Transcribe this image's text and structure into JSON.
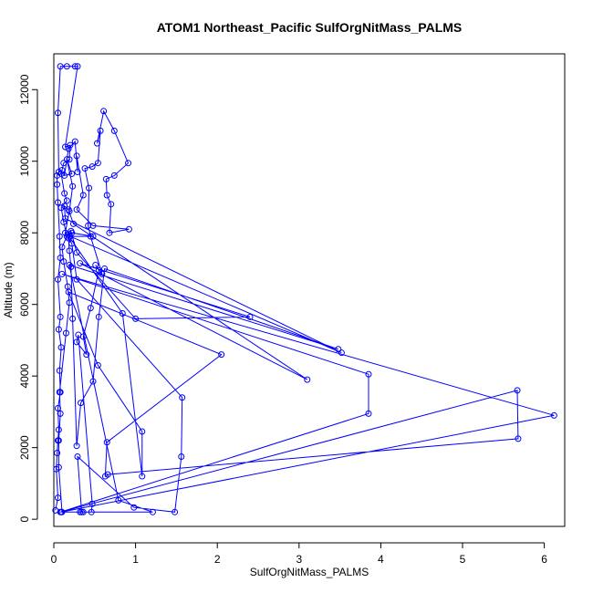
{
  "chart_data": {
    "type": "line",
    "title": "ATOM1 Northeast_Pacific SulfOrgNitMass_PALMS",
    "xlabel": "SulfOrgNitMass_PALMS",
    "ylabel": "Altitude (m)",
    "xlim": [
      0,
      6.25
    ],
    "ylim": [
      -200,
      13000
    ],
    "xticks": [
      0,
      1,
      2,
      3,
      4,
      5,
      6
    ],
    "yticks": [
      0,
      2000,
      4000,
      6000,
      8000,
      10000,
      12000
    ],
    "grid": false,
    "line_color": "#0000ff",
    "marker": "open-circle",
    "series": [
      {
        "points": [
          [
            0.02,
            250
          ],
          [
            0.05,
            600
          ],
          [
            0.03,
            1400
          ],
          [
            0.04,
            1850
          ],
          [
            0.05,
            2200
          ],
          [
            0.06,
            2500
          ],
          [
            0.05,
            3100
          ],
          [
            0.08,
            3550
          ],
          [
            0.07,
            4150
          ],
          [
            0.09,
            4800
          ],
          [
            0.06,
            5300
          ],
          [
            0.08,
            5650
          ],
          [
            0.05,
            6700
          ],
          [
            0.08,
            7300
          ],
          [
            0.07,
            7900
          ],
          [
            0.05,
            8850
          ],
          [
            0.04,
            9350
          ],
          [
            0.04,
            9600
          ],
          [
            0.06,
            9700
          ],
          [
            0.05,
            11350
          ],
          [
            0.08,
            12650
          ],
          [
            0.16,
            12650
          ],
          [
            0.26,
            12650
          ],
          [
            0.29,
            12650
          ],
          [
            0.14,
            10400
          ],
          [
            0.2,
            10450
          ],
          [
            0.19,
            10050
          ],
          [
            0.12,
            9950
          ],
          [
            0.1,
            9750
          ],
          [
            0.09,
            9650
          ],
          [
            0.13,
            9100
          ],
          [
            0.16,
            8900
          ],
          [
            0.09,
            8700
          ],
          [
            0.12,
            8300
          ],
          [
            0.16,
            7900
          ],
          [
            0.1,
            7600
          ],
          [
            0.12,
            7200
          ],
          [
            0.17,
            6500
          ],
          [
            0.19,
            6050
          ],
          [
            0.15,
            5200
          ],
          [
            0.07,
            3550
          ],
          [
            0.08,
            2950
          ],
          [
            0.06,
            2200
          ],
          [
            0.06,
            1450
          ],
          [
            0.1,
            200
          ],
          [
            0.32,
            200
          ],
          [
            0.36,
            200
          ],
          [
            0.46,
            200
          ],
          [
            0.47,
            430
          ],
          [
            0.3,
            5150
          ],
          [
            0.28,
            4950
          ],
          [
            0.4,
            4600
          ],
          [
            0.36,
            5100
          ],
          [
            0.45,
            5900
          ],
          [
            0.55,
            6950
          ],
          [
            0.51,
            7100
          ],
          [
            0.59,
            6850
          ],
          [
            0.45,
            7900
          ],
          [
            0.42,
            8200
          ],
          [
            0.43,
            9250
          ],
          [
            0.38,
            9800
          ],
          [
            0.47,
            9850
          ],
          [
            0.54,
            9950
          ],
          [
            0.57,
            10850
          ],
          [
            0.53,
            10500
          ],
          [
            0.61,
            11400
          ],
          [
            0.74,
            10850
          ],
          [
            0.91,
            9950
          ],
          [
            0.74,
            9600
          ],
          [
            0.64,
            9500
          ],
          [
            0.65,
            9050
          ],
          [
            0.7,
            8800
          ],
          [
            0.68,
            8000
          ],
          [
            0.92,
            8100
          ],
          [
            0.48,
            8200
          ],
          [
            0.28,
            8650
          ],
          [
            0.36,
            9050
          ],
          [
            0.28,
            10150
          ],
          [
            0.29,
            9700
          ],
          [
            0.26,
            10550
          ],
          [
            0.18,
            10350
          ],
          [
            0.13,
            9600
          ],
          [
            0.22,
            9650
          ],
          [
            0.16,
            10050
          ],
          [
            0.23,
            9300
          ],
          [
            0.19,
            8600
          ],
          [
            0.14,
            8000
          ],
          [
            0.22,
            7700
          ],
          [
            0.28,
            6700
          ],
          [
            1.57,
            3400
          ],
          [
            1.56,
            1750
          ],
          [
            1.48,
            200
          ],
          [
            0.98,
            330
          ],
          [
            0.29,
            1750
          ],
          [
            0.34,
            200
          ],
          [
            1.21,
            200
          ],
          [
            0.79,
            530
          ],
          [
            0.19,
            7100
          ],
          [
            3.48,
            4750
          ],
          [
            0.62,
            7000
          ],
          [
            0.55,
            5650
          ],
          [
            0.48,
            3850
          ],
          [
            0.33,
            3250
          ],
          [
            0.28,
            2050
          ],
          [
            0.23,
            5600
          ],
          [
            0.21,
            7050
          ],
          [
            0.19,
            7500
          ],
          [
            0.18,
            7850
          ],
          [
            0.21,
            8050
          ],
          [
            0.28,
            7450
          ],
          [
            1.0,
            5600
          ],
          [
            2.4,
            5650
          ],
          [
            0.32,
            7150
          ],
          [
            3.1,
            3900
          ],
          [
            0.24,
            8250
          ],
          [
            0.18,
            8650
          ],
          [
            0.13,
            8750
          ],
          [
            0.14,
            8400
          ],
          [
            3.52,
            4650
          ],
          [
            0.2,
            7900
          ],
          [
            0.48,
            7900
          ],
          [
            0.22,
            8000
          ],
          [
            0.17,
            7950
          ],
          [
            0.84,
            5750
          ],
          [
            1.08,
            1200
          ],
          [
            1.08,
            2450
          ],
          [
            0.54,
            4300
          ],
          [
            0.18,
            6350
          ],
          [
            2.05,
            4600
          ],
          [
            0.65,
            2150
          ],
          [
            0.63,
            1200
          ],
          [
            0.66,
            1250
          ],
          [
            5.68,
            2250
          ],
          [
            5.67,
            3600
          ],
          [
            0.08,
            200
          ],
          [
            3.85,
            2950
          ],
          [
            3.85,
            4050
          ],
          [
            0.1,
            6850
          ],
          [
            6.12,
            2900
          ],
          [
            0.09,
            200
          ]
        ]
      }
    ]
  }
}
